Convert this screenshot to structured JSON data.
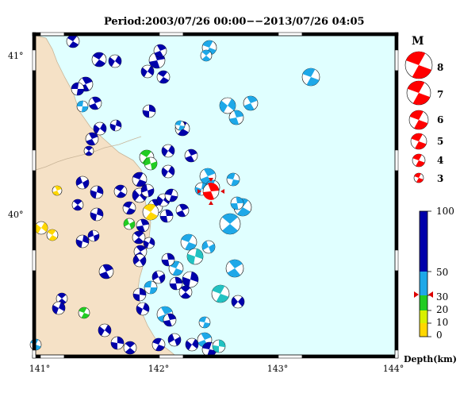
{
  "title": "Period:2003/07/26 00:00−−2013/07/26 04:05",
  "latitude_labels": [
    "41°",
    "40°"
  ],
  "longitude_labels": [
    "141°",
    "142°",
    "143°",
    "144°"
  ],
  "legend": {
    "magnitude_title": "M",
    "magnitudes": [
      "8",
      "7",
      "6",
      "5",
      "4",
      "3"
    ],
    "depth_ticks": [
      "100",
      "50",
      "30",
      "20",
      "10",
      "0"
    ],
    "depth_unit": "Depth(km)",
    "depth_colors": [
      {
        "range": "0-10",
        "color": "#ffd700"
      },
      {
        "range": "10-20",
        "color": "#d8f000"
      },
      {
        "range": "20-30",
        "color": "#22cc22"
      },
      {
        "range": "30-50",
        "color": "#1ea8e8"
      },
      {
        "range": "50-100",
        "color": "#0000aa"
      }
    ],
    "marker_color": "#dd0000"
  },
  "colors": {
    "sea": "#e0ffff",
    "land": "#f5e1c6",
    "highlight": "#ff0000"
  }
}
